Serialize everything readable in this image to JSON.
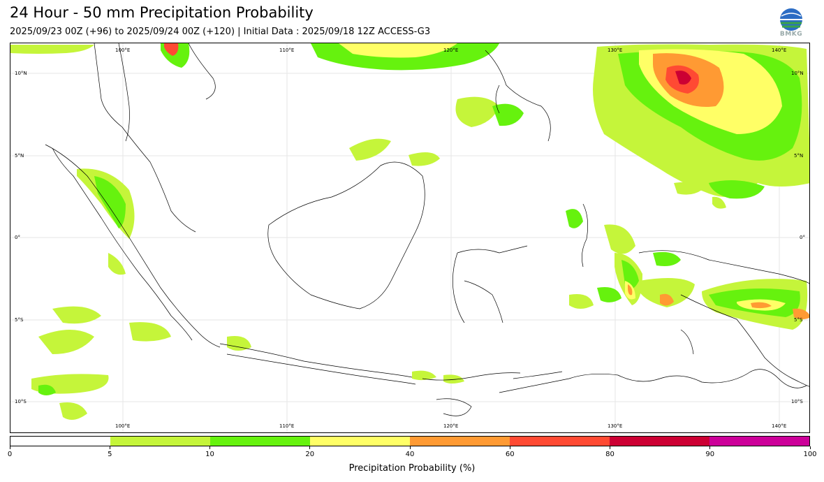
{
  "header": {
    "title": "24 Hour - 50 mm Precipitation Probability",
    "subtitle": "2025/09/23 00Z (+96) to 2025/09/24 00Z (+120) | Initial Data : 2025/09/18 12Z ACCESS-G3",
    "logo_text": "BMKG"
  },
  "map": {
    "lon_labels": [
      "100°E",
      "110°E",
      "120°E",
      "130°E",
      "140°E"
    ],
    "lat_labels": [
      "10°N",
      "5°N",
      "0°",
      "5°S",
      "10°S"
    ]
  },
  "colorbar": {
    "title": "Precipitation Probability (%)",
    "ticks": [
      "0",
      "5",
      "10",
      "20",
      "40",
      "60",
      "80",
      "90",
      "100"
    ],
    "colors": [
      "#ffffff",
      "#c5f53a",
      "#66f20e",
      "#ffff66",
      "#ff9a33",
      "#ff4a33",
      "#cc0033",
      "#cc0099"
    ]
  },
  "colors": {
    "land_outline": "#000000",
    "grid": "#e6e6e6"
  }
}
